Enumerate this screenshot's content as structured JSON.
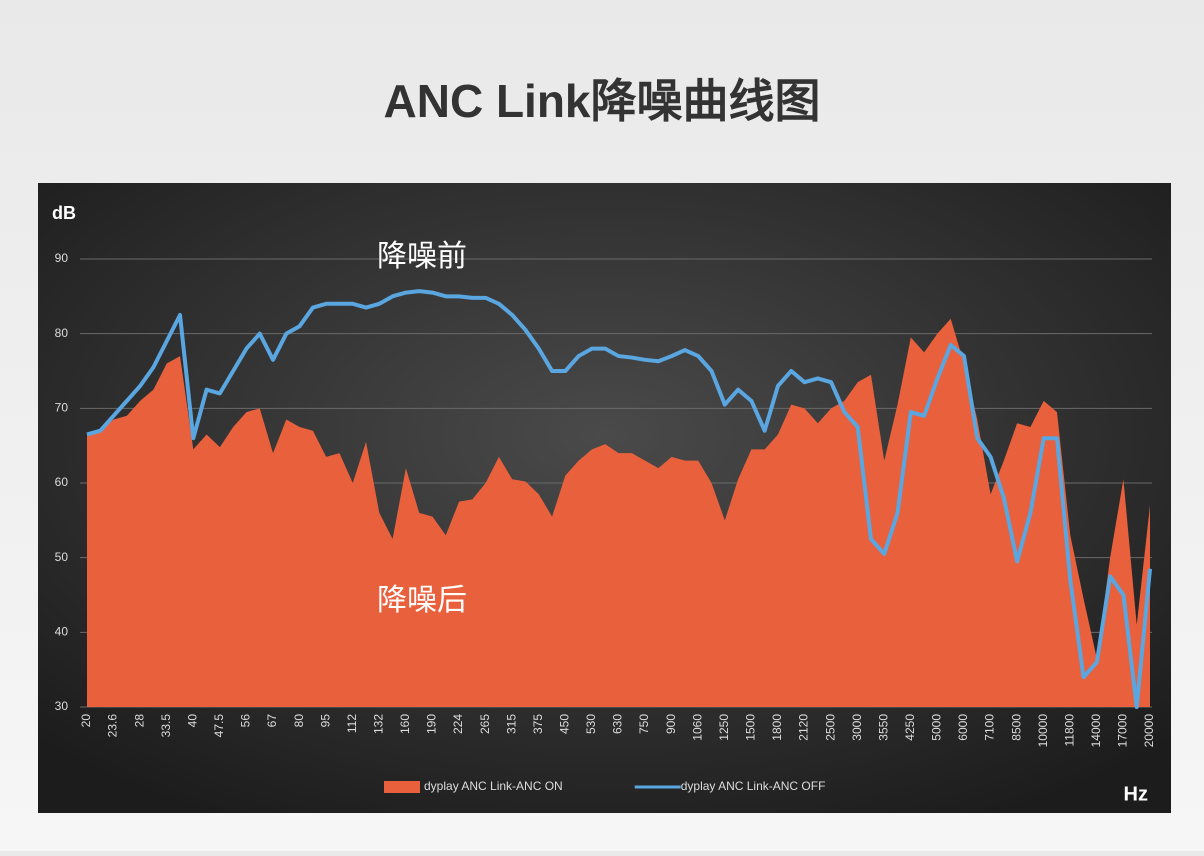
{
  "chart_data": {
    "type": "area",
    "title": "ANC Link降噪曲线图",
    "y_label": "dB",
    "x_label": "Hz",
    "annotations": [
      "降噪前",
      "降噪后"
    ],
    "categories": [
      "20",
      null,
      "23.6",
      null,
      "28",
      null,
      "33.5",
      null,
      "40",
      null,
      "47.5",
      null,
      "56",
      null,
      "67",
      null,
      "80",
      null,
      "95",
      null,
      "112",
      null,
      "132",
      null,
      "160",
      null,
      "190",
      null,
      "224",
      null,
      "265",
      null,
      "315",
      null,
      "375",
      null,
      "450",
      null,
      "530",
      null,
      "630",
      null,
      "750",
      null,
      "900",
      null,
      "1060",
      null,
      "1250",
      null,
      "1500",
      null,
      "1800",
      null,
      "2120",
      null,
      "2500",
      null,
      "3000",
      null,
      "3550",
      null,
      "4250",
      null,
      "5000",
      null,
      "6000",
      null,
      "7100",
      null,
      "8500",
      null,
      "10000",
      null,
      "11800",
      null,
      "14000",
      null,
      "17000",
      null,
      "20000"
    ],
    "series": [
      {
        "name": "dyplay ANC Link-ANC ON",
        "type": "area",
        "color": "#e8603c",
        "values": [
          66.5,
          67,
          68.5,
          69,
          71,
          72.5,
          76,
          77,
          64.5,
          66.5,
          64.8,
          67.5,
          69.5,
          70,
          64,
          68.5,
          67.5,
          67,
          63.5,
          64,
          60,
          65.5,
          56,
          52.5,
          62,
          56,
          55.5,
          53,
          57.5,
          57.8,
          60,
          63.5,
          60.5,
          60.2,
          58.5,
          55.5,
          61,
          63,
          64.5,
          65.2,
          64,
          64,
          63,
          62,
          63.5,
          63,
          63,
          60,
          55,
          60.5,
          64.5,
          64.5,
          66.5,
          70.5,
          70,
          68,
          70,
          71,
          73.5,
          74.5,
          63,
          70.5,
          79.5,
          77.5,
          80,
          82,
          76,
          68.5,
          58.5,
          63,
          68,
          67.5,
          71,
          69.5,
          53,
          44.5,
          36.5,
          50,
          60.5,
          41,
          57
        ]
      },
      {
        "name": "dyplay ANC Link-ANC OFF",
        "type": "line",
        "color": "#5aa6e0",
        "values": [
          66.5,
          67,
          69,
          71,
          73,
          75.5,
          79,
          82.5,
          66,
          72.5,
          72,
          75,
          78,
          80,
          76.5,
          80,
          81,
          83.5,
          84,
          84,
          84,
          83.5,
          84,
          85,
          85.5,
          85.7,
          85.5,
          85,
          85,
          84.8,
          84.8,
          84,
          82.5,
          80.5,
          78,
          75,
          75,
          77,
          78,
          78,
          77,
          76.8,
          76.5,
          76.3,
          77,
          77.8,
          77,
          75,
          70.5,
          72.5,
          71,
          67,
          73,
          75,
          73.5,
          74,
          73.5,
          69.5,
          67.5,
          52.5,
          50.5,
          56,
          69.5,
          69,
          74,
          78.5,
          77,
          66,
          63.5,
          58,
          49.5,
          56,
          66,
          66,
          47,
          34,
          36,
          47.5,
          45,
          30,
          48.5
        ]
      }
    ],
    "ylim": [
      30,
      90
    ],
    "yticks": [
      30,
      40,
      50,
      60,
      70,
      80,
      90
    ],
    "grid": true
  }
}
